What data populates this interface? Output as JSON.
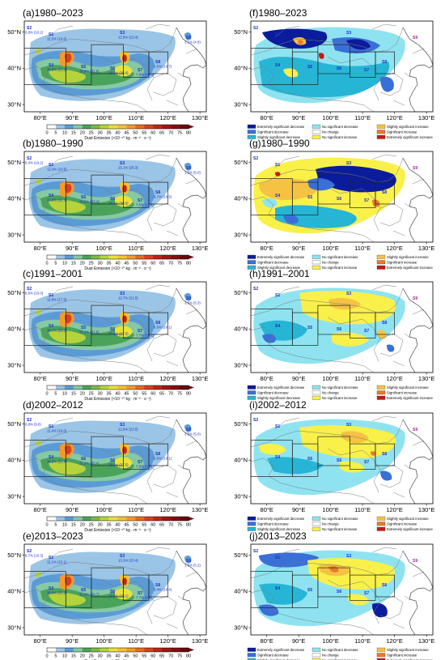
{
  "panels": [
    {
      "id": "a",
      "title": "(a)1980–2023",
      "kind": "emission",
      "regions": [
        {
          "code": "S2",
          "value": "6.8% (10.2)"
        },
        {
          "code": "S1",
          "value": "11.5% (16.6)"
        },
        {
          "code": "S3",
          "value": "12.8% (23.4)"
        },
        {
          "code": "S4",
          "value": "36.8% (53.3)"
        },
        {
          "code": "S5",
          "value": "20.9% (31.8)"
        },
        {
          "code": "S6",
          "value": "18.4% (28.4)"
        },
        {
          "code": "S7",
          "value": "7.6% (10.0)"
        },
        {
          "code": "S8",
          "value": "6.5% (10.7)"
        },
        {
          "code": "S9",
          "value": "3.1% (4.8)"
        }
      ]
    },
    {
      "id": "f",
      "title": "(f)1980–2023",
      "kind": "trend",
      "regions": [
        {
          "code": "S2"
        },
        {
          "code": "S1"
        },
        {
          "code": "S3"
        },
        {
          "code": "S4"
        },
        {
          "code": "S5"
        },
        {
          "code": "S6"
        },
        {
          "code": "S7"
        },
        {
          "code": "S8"
        },
        {
          "code": "S9"
        }
      ]
    },
    {
      "id": "b",
      "title": "(b)1980–1990",
      "kind": "emission",
      "regions": [
        {
          "code": "S2",
          "value": "6.4% (10.2)"
        },
        {
          "code": "S1",
          "value": "12.3% (19.5)"
        },
        {
          "code": "S3",
          "value": "15.1% (25.3)"
        },
        {
          "code": "S4",
          "value": "37.8% (62.1)"
        },
        {
          "code": "S5",
          "value": "20.6% (33.4)"
        },
        {
          "code": "S6",
          "value": "18.2% (30.5)"
        },
        {
          "code": "S7",
          "value": "7.5% (11.4)"
        },
        {
          "code": "S8",
          "value": "6.7% (10.5)"
        },
        {
          "code": "S9",
          "value": "3.5% (5.0)"
        }
      ]
    },
    {
      "id": "g",
      "title": "(g)1980–1990",
      "kind": "trend",
      "regions": [
        {
          "code": "S2"
        },
        {
          "code": "S1"
        },
        {
          "code": "S3"
        },
        {
          "code": "S4"
        },
        {
          "code": "S5"
        },
        {
          "code": "S6"
        },
        {
          "code": "S7"
        },
        {
          "code": "S8"
        },
        {
          "code": "S9"
        }
      ]
    },
    {
      "id": "c",
      "title": "(c)1991–2001",
      "kind": "emission",
      "regions": [
        {
          "code": "S2",
          "value": "6.6% (10.0)"
        },
        {
          "code": "S1",
          "value": "11.8% (17.5)"
        },
        {
          "code": "S3",
          "value": "12.7% (21.5)"
        },
        {
          "code": "S4",
          "value": "36.7% (55.2)"
        },
        {
          "code": "S5",
          "value": "21.2% (31.6)"
        },
        {
          "code": "S6",
          "value": "18.4% (27.5)"
        },
        {
          "code": "S7",
          "value": "7.7% (10.1)"
        },
        {
          "code": "S8",
          "value": "6.5% (10.1)"
        },
        {
          "code": "S9",
          "value": "3.5% (5.3)"
        }
      ]
    },
    {
      "id": "h",
      "title": "(h)1991–2001",
      "kind": "trend",
      "regions": [
        {
          "code": "S2"
        },
        {
          "code": "S1"
        },
        {
          "code": "S3"
        },
        {
          "code": "S4"
        },
        {
          "code": "S5"
        },
        {
          "code": "S6"
        },
        {
          "code": "S7"
        },
        {
          "code": "S8"
        },
        {
          "code": "S9"
        }
      ]
    },
    {
      "id": "d",
      "title": "(d)2002–2012",
      "kind": "emission",
      "regions": [
        {
          "code": "S2",
          "value": "6.8% (9.8)"
        },
        {
          "code": "S1",
          "value": "11.4% (16.0)"
        },
        {
          "code": "S3",
          "value": "12.6% (22.5)"
        },
        {
          "code": "S4",
          "value": "36.2% (51.0)"
        },
        {
          "code": "S5",
          "value": "21.2% (30.4)"
        },
        {
          "code": "S6",
          "value": "18.4% (27.5)"
        },
        {
          "code": "S7",
          "value": "7.6% (9.5)"
        },
        {
          "code": "S8",
          "value": "6.5% (10.1)"
        },
        {
          "code": "S9",
          "value": "3.5% (5.0)"
        }
      ]
    },
    {
      "id": "i",
      "title": "(i)2002–2012",
      "kind": "trend",
      "regions": [
        {
          "code": "S2"
        },
        {
          "code": "S1"
        },
        {
          "code": "S3"
        },
        {
          "code": "S4"
        },
        {
          "code": "S5"
        },
        {
          "code": "S6"
        },
        {
          "code": "S7"
        },
        {
          "code": "S8"
        },
        {
          "code": "S9"
        }
      ]
    },
    {
      "id": "e",
      "title": "(e)2013–2023",
      "kind": "emission",
      "regions": [
        {
          "code": "S2",
          "value": "6.7% (10.3)"
        },
        {
          "code": "S1",
          "value": "11.1% (15.1)"
        },
        {
          "code": "S3",
          "value": "13.1% (23.4)"
        },
        {
          "code": "S4",
          "value": "36.8% (51.2)"
        },
        {
          "code": "S5",
          "value": "21.0% (30.7)"
        },
        {
          "code": "S6",
          "value": "18.5% (28.1)"
        },
        {
          "code": "S7",
          "value": "7.7% (9.8)"
        },
        {
          "code": "S8",
          "value": "6.4% (10.4)"
        },
        {
          "code": "S9",
          "value": "3.5% (5.2)"
        }
      ]
    },
    {
      "id": "j",
      "title": "(j)2013–2023",
      "kind": "trend",
      "regions": [
        {
          "code": "S2"
        },
        {
          "code": "S1"
        },
        {
          "code": "S3"
        },
        {
          "code": "S4"
        },
        {
          "code": "S5"
        },
        {
          "code": "S6"
        },
        {
          "code": "S7"
        },
        {
          "code": "S8"
        },
        {
          "code": "S9"
        }
      ]
    }
  ],
  "axes": {
    "lon_ticks": [
      "80°E",
      "90°E",
      "100°E",
      "110°E",
      "120°E",
      "130°E"
    ],
    "lat_ticks": [
      "50°N",
      "40°N",
      "30°N"
    ]
  },
  "colorbar": {
    "ticks": [
      "0",
      "5",
      "10",
      "15",
      "20",
      "25",
      "30",
      "35",
      "40",
      "45",
      "50",
      "55",
      "60",
      "65",
      "70",
      "75",
      "80"
    ],
    "label": "Dust Emission (×10⁻¹° kg · m⁻² · s⁻¹)",
    "colors": [
      "#ffffff",
      "#9bc5e6",
      "#5b9bd5",
      "#86c9a3",
      "#4aa35a",
      "#7dbb42",
      "#b6d33a",
      "#e8e23a",
      "#f5c233",
      "#f29b2c",
      "#e86a24",
      "#d9401e",
      "#bf2418",
      "#a01616",
      "#851010",
      "#6a0a0a"
    ]
  },
  "trend_legend": {
    "items": [
      {
        "label": "Extremely significant decrease",
        "color": "#0a1c9c"
      },
      {
        "label": "No significant decrease",
        "color": "#8fe3f0"
      },
      {
        "label": "Slightly significant increase",
        "color": "#f6c243"
      },
      {
        "label": "Significant decrease",
        "color": "#3a6fd8"
      },
      {
        "label": "No change",
        "color": "#ffffff"
      },
      {
        "label": "Significant increase",
        "color": "#ed7a26"
      },
      {
        "label": "Slightly significant decrease",
        "color": "#27b5d6"
      },
      {
        "label": "No significant increase",
        "color": "#f9f04a"
      },
      {
        "label": "Extremely significant increase",
        "color": "#c61a12"
      }
    ]
  }
}
